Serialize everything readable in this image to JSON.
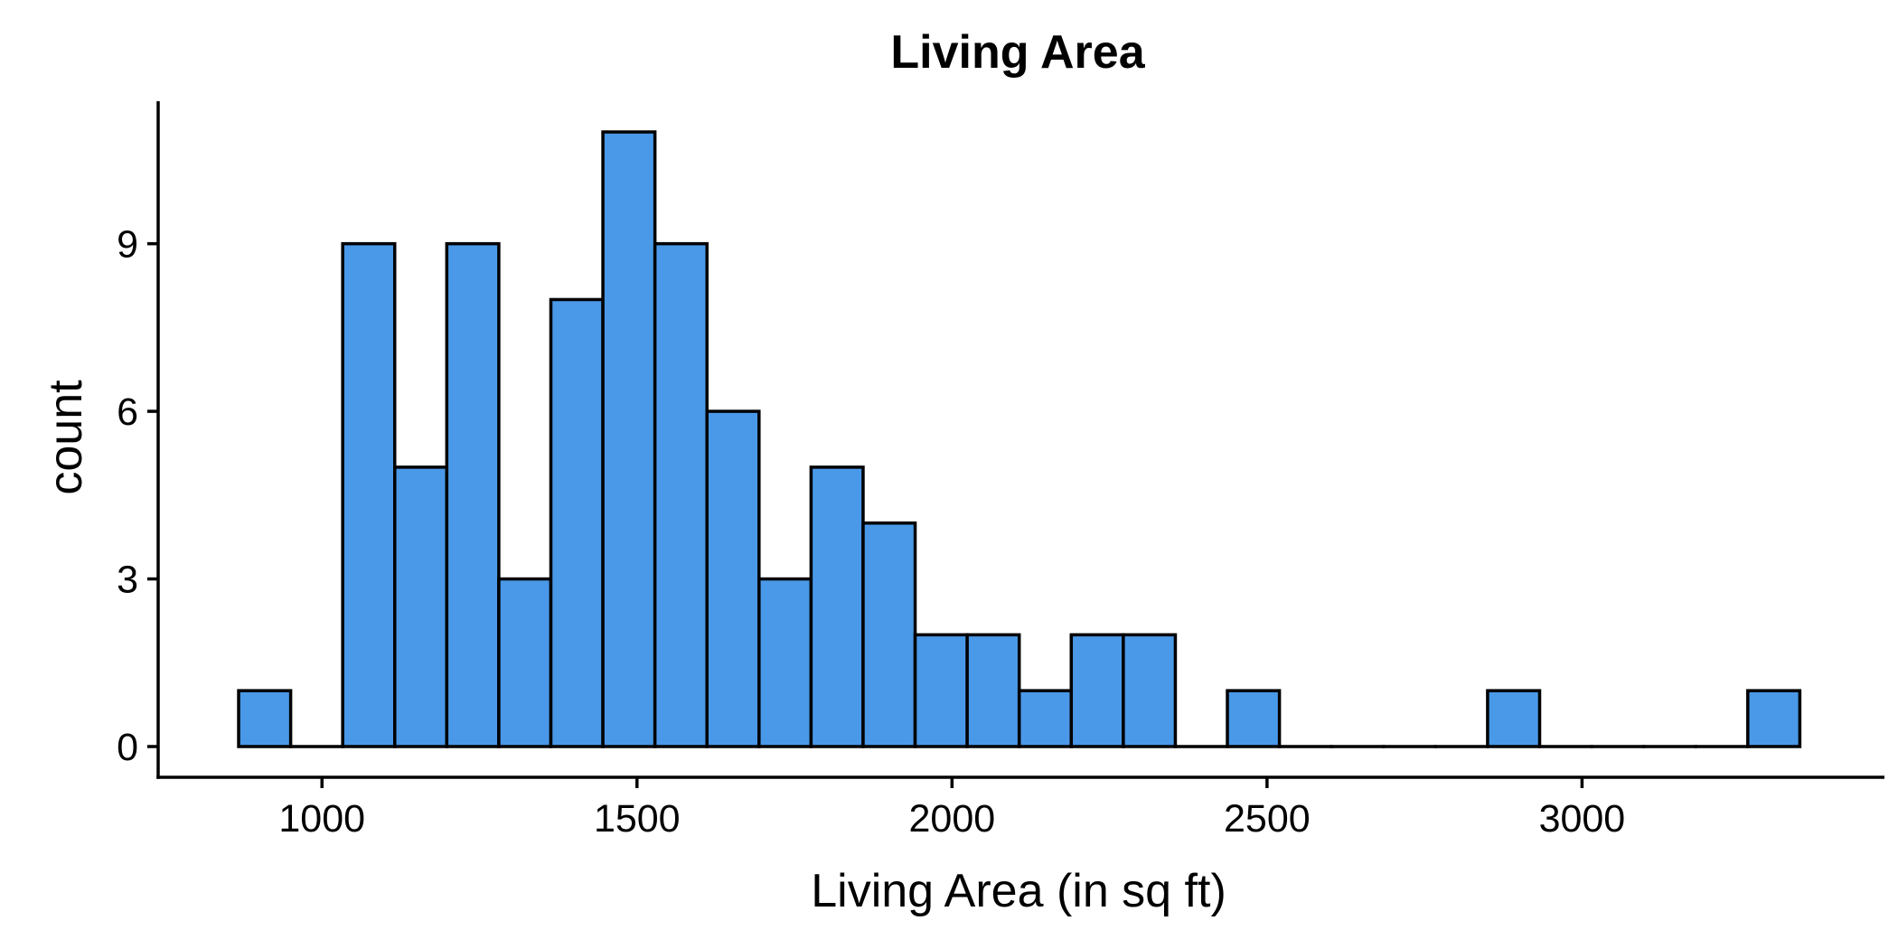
{
  "chart_data": {
    "type": "bar",
    "title": "Living Area",
    "xlabel": "Living Area (in sq ft)",
    "ylabel": "count",
    "bin_width": 82.6,
    "bin_start": 867.7,
    "counts": [
      1,
      0,
      9,
      5,
      9,
      3,
      8,
      11,
      9,
      6,
      3,
      5,
      4,
      2,
      2,
      1,
      2,
      2,
      0,
      1,
      0,
      0,
      0,
      0,
      1,
      0,
      0,
      0,
      0,
      1
    ],
    "xlim": [
      740,
      3480
    ],
    "ylim": [
      -0.55,
      11.55
    ],
    "x_ticks": [
      1000,
      1500,
      2000,
      2500,
      3000
    ],
    "y_ticks": [
      0,
      3,
      6,
      9
    ],
    "grid": false,
    "legend": "none",
    "bar_color": "#4a99e8",
    "edge_color": "#000000"
  }
}
